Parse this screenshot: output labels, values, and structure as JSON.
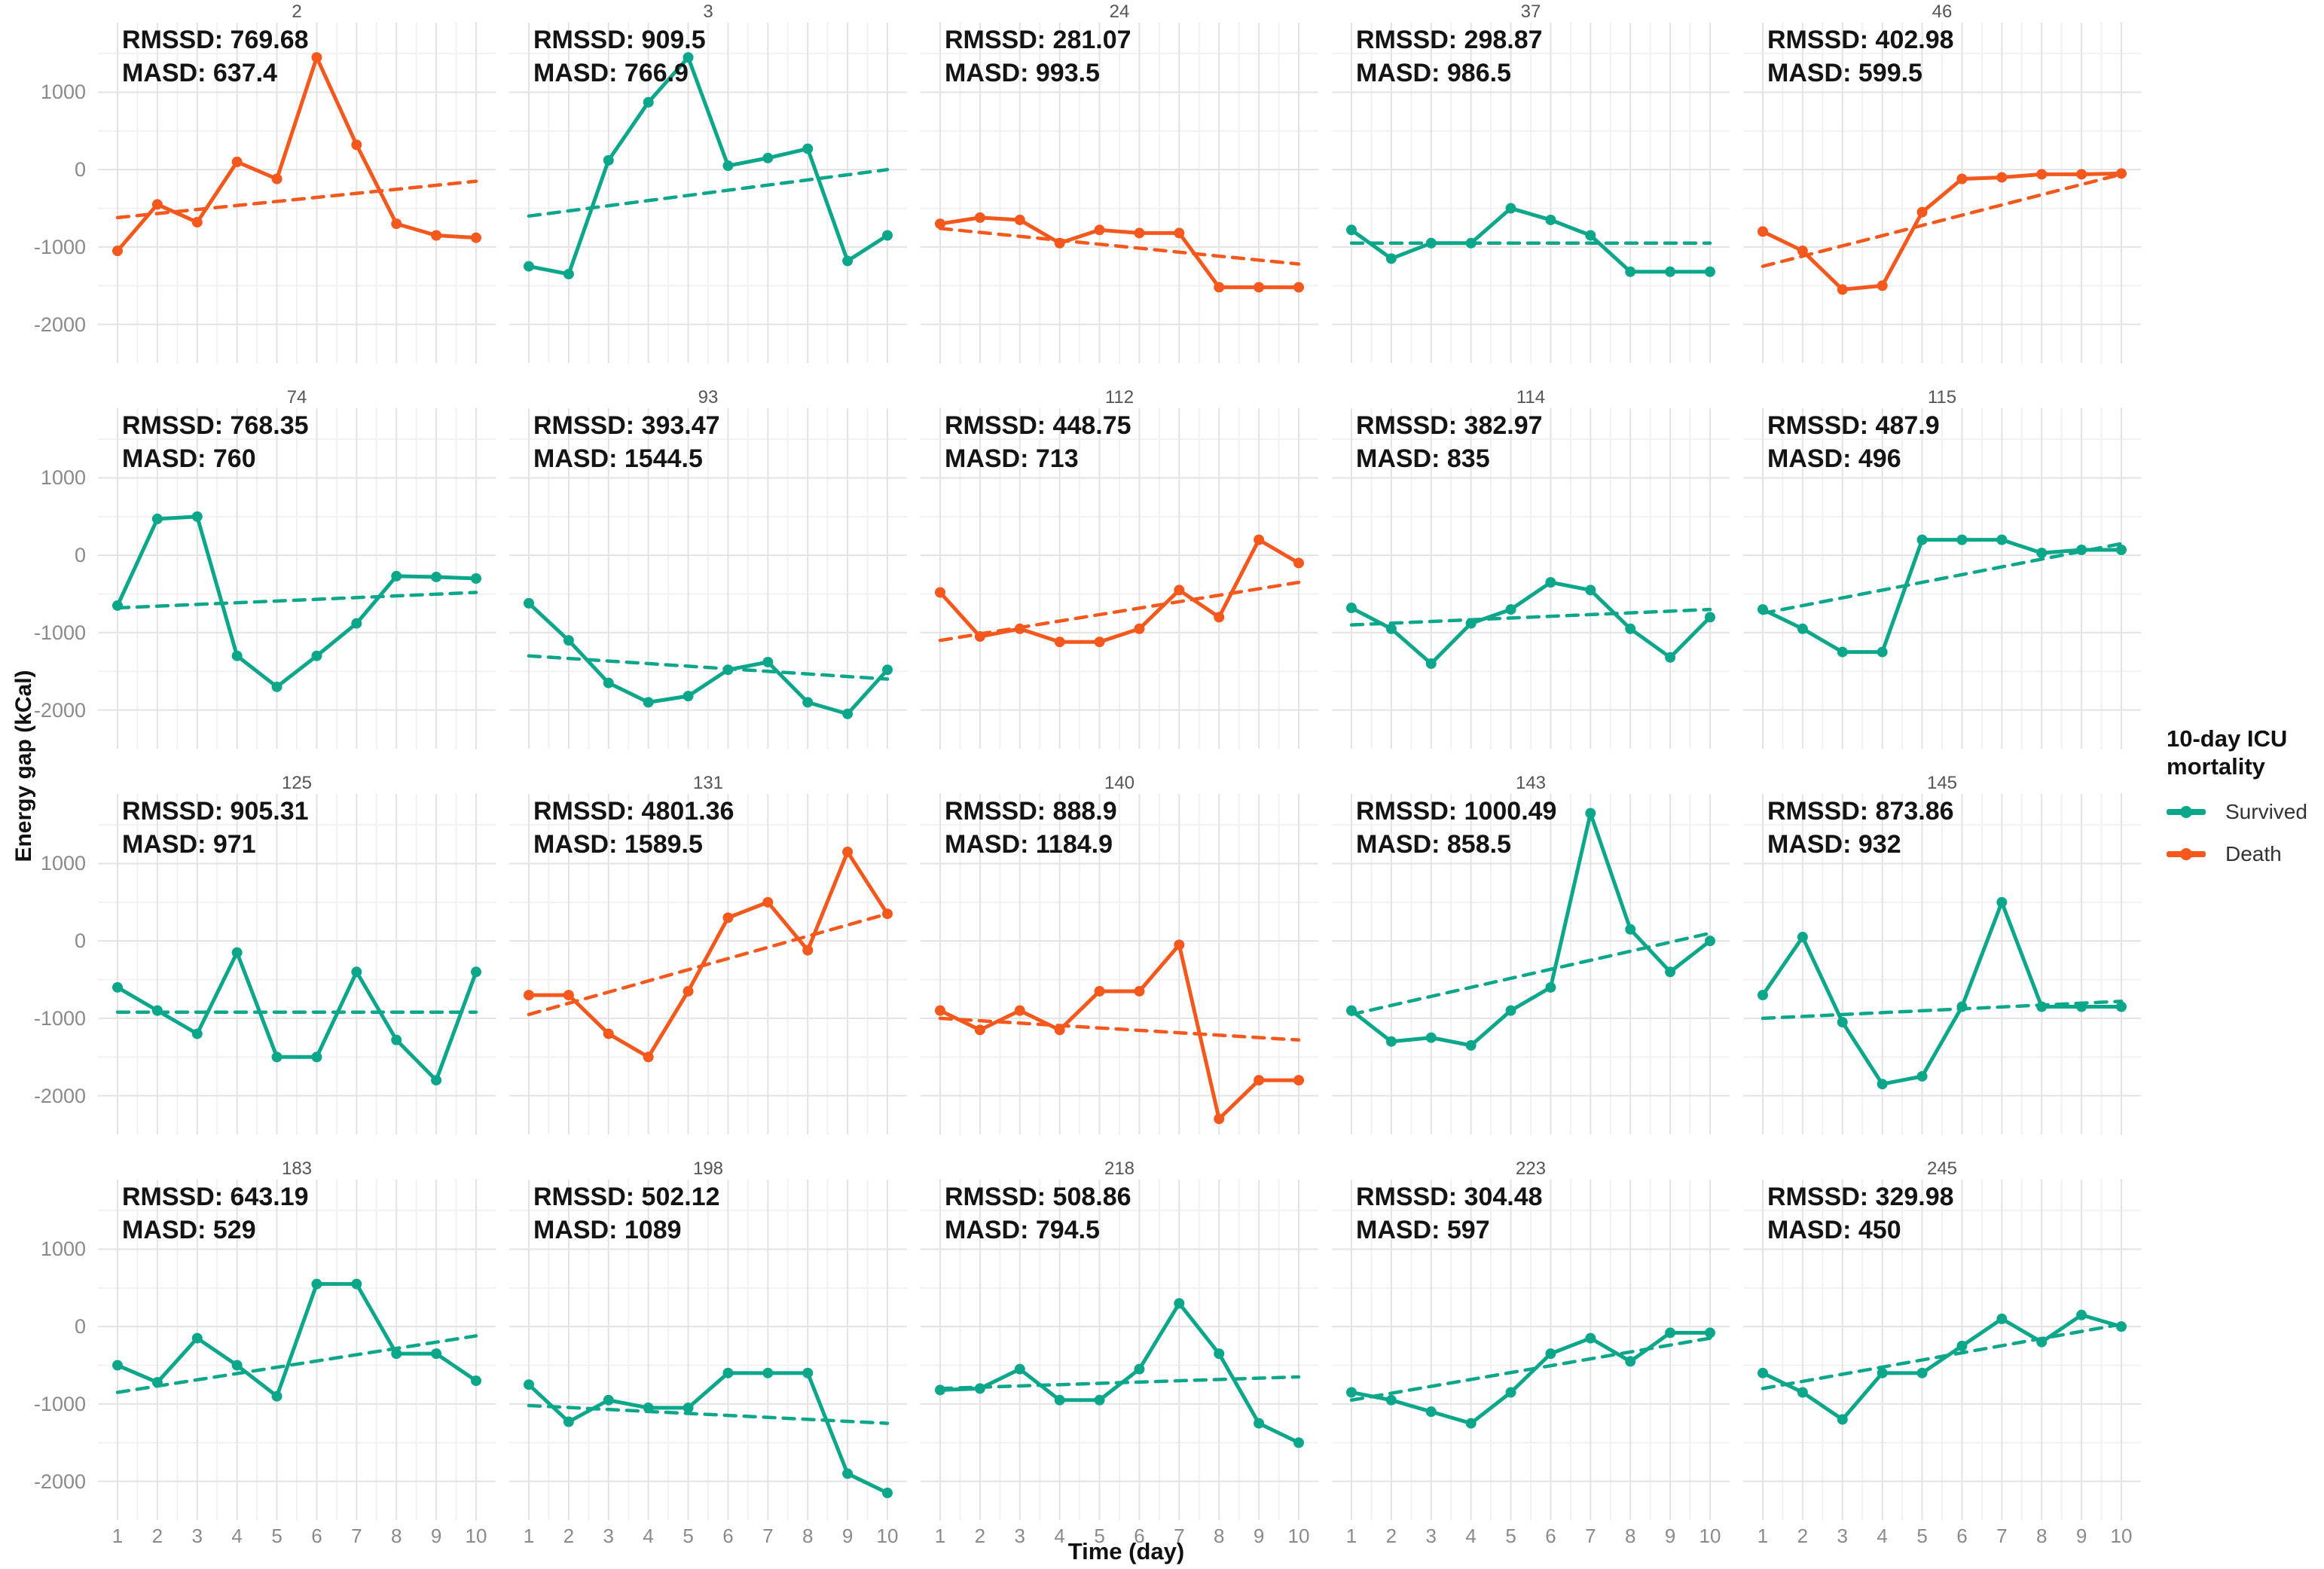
{
  "chart_data": {
    "type": "line",
    "title": "",
    "xlabel": "Time (day)",
    "ylabel": "Energy gap (kCal)",
    "x": [
      1,
      2,
      3,
      4,
      5,
      6,
      7,
      8,
      9,
      10
    ],
    "xticks": [
      "1",
      "2",
      "3",
      "4",
      "5",
      "6",
      "7",
      "8",
      "9",
      "10"
    ],
    "ylim": [
      -2500,
      1900
    ],
    "yticks": [
      1000,
      0,
      -1000,
      -2000
    ],
    "grid": {
      "major_color": "#e3e3e3",
      "minor_color": "#f1f1f1",
      "on": true
    },
    "annotation_labels": {
      "rmssd": "RMSSD:",
      "masd": "MASD:"
    },
    "legend": {
      "title_lines": [
        "10-day ICU",
        "mortality"
      ],
      "position": "right",
      "entries": [
        {
          "label": "Survived",
          "color": "#0CA78A"
        },
        {
          "label": "Death",
          "color": "#F4581C"
        }
      ]
    },
    "series_colors": {
      "Survived": "#0CA78A",
      "Death": "#F4581C"
    },
    "facets": [
      {
        "id": "2",
        "group": "Death",
        "rmssd": "769.68",
        "masd": "637.4",
        "values": [
          -1050,
          -450,
          -680,
          100,
          -120,
          1450,
          320,
          -700,
          -850,
          -880
        ],
        "trend": [
          -620,
          -150
        ]
      },
      {
        "id": "3",
        "group": "Survived",
        "rmssd": "909.5",
        "masd": "766.9",
        "values": [
          -1250,
          -1350,
          120,
          870,
          1450,
          50,
          150,
          270,
          -1180,
          -850
        ],
        "trend": [
          -600,
          0
        ]
      },
      {
        "id": "24",
        "group": "Death",
        "rmssd": "281.07",
        "masd": "993.5",
        "values": [
          -700,
          -620,
          -650,
          -950,
          -780,
          -820,
          -820,
          -1520,
          -1520,
          -1520
        ],
        "trend": [
          -760,
          -1220
        ]
      },
      {
        "id": "37",
        "group": "Survived",
        "rmssd": "298.87",
        "masd": "986.5",
        "values": [
          -780,
          -1150,
          -950,
          -950,
          -500,
          -650,
          -850,
          -1320,
          -1320,
          -1320
        ],
        "trend": [
          -950,
          -950
        ]
      },
      {
        "id": "46",
        "group": "Death",
        "rmssd": "402.98",
        "masd": "599.5",
        "values": [
          -800,
          -1050,
          -1550,
          -1500,
          -550,
          -120,
          -100,
          -60,
          -60,
          -50
        ],
        "trend": [
          -1250,
          -60
        ]
      },
      {
        "id": "74",
        "group": "Survived",
        "rmssd": "768.35",
        "masd": "760",
        "values": [
          -650,
          470,
          500,
          -1300,
          -1700,
          -1300,
          -880,
          -270,
          -280,
          -300
        ],
        "trend": [
          -680,
          -480
        ]
      },
      {
        "id": "93",
        "group": "Survived",
        "rmssd": "393.47",
        "masd": "1544.5",
        "values": [
          -620,
          -1100,
          -1650,
          -1900,
          -1820,
          -1480,
          -1380,
          -1900,
          -2050,
          -1480
        ],
        "trend": [
          -1300,
          -1600
        ]
      },
      {
        "id": "112",
        "group": "Death",
        "rmssd": "448.75",
        "masd": "713",
        "values": [
          -480,
          -1050,
          -950,
          -1120,
          -1120,
          -950,
          -450,
          -800,
          200,
          -100
        ],
        "trend": [
          -1100,
          -350
        ]
      },
      {
        "id": "114",
        "group": "Survived",
        "rmssd": "382.97",
        "masd": "835",
        "values": [
          -680,
          -950,
          -1400,
          -880,
          -700,
          -350,
          -450,
          -950,
          -1320,
          -800
        ],
        "trend": [
          -900,
          -700
        ]
      },
      {
        "id": "115",
        "group": "Survived",
        "rmssd": "487.9",
        "masd": "496",
        "values": [
          -700,
          -950,
          -1250,
          -1250,
          200,
          200,
          200,
          30,
          70,
          70
        ],
        "trend": [
          -750,
          150
        ]
      },
      {
        "id": "125",
        "group": "Survived",
        "rmssd": "905.31",
        "masd": "971",
        "values": [
          -600,
          -900,
          -1200,
          -150,
          -1500,
          -1500,
          -400,
          -1280,
          -1800,
          -400
        ],
        "trend": [
          -920,
          -920
        ]
      },
      {
        "id": "131",
        "group": "Death",
        "rmssd": "4801.36",
        "masd": "1589.5",
        "values": [
          -700,
          -700,
          -1200,
          -1500,
          -650,
          300,
          500,
          -120,
          1150,
          350
        ],
        "trend": [
          -950,
          350
        ]
      },
      {
        "id": "140",
        "group": "Death",
        "rmssd": "888.9",
        "masd": "1184.9",
        "values": [
          -900,
          -1150,
          -900,
          -1150,
          -650,
          -650,
          -50,
          -2300,
          -1800,
          -1800
        ],
        "trend": [
          -1000,
          -1280
        ]
      },
      {
        "id": "143",
        "group": "Survived",
        "rmssd": "1000.49",
        "masd": "858.5",
        "values": [
          -900,
          -1300,
          -1250,
          -1350,
          -900,
          -600,
          1650,
          150,
          -400,
          0
        ],
        "trend": [
          -950,
          100
        ]
      },
      {
        "id": "145",
        "group": "Survived",
        "rmssd": "873.86",
        "masd": "932",
        "values": [
          -700,
          50,
          -1050,
          -1850,
          -1750,
          -850,
          500,
          -850,
          -850,
          -850
        ],
        "trend": [
          -1000,
          -780
        ]
      },
      {
        "id": "183",
        "group": "Survived",
        "rmssd": "643.19",
        "masd": "529",
        "values": [
          -500,
          -720,
          -150,
          -500,
          -900,
          550,
          550,
          -350,
          -350,
          -700
        ],
        "trend": [
          -850,
          -120
        ]
      },
      {
        "id": "198",
        "group": "Survived",
        "rmssd": "502.12",
        "masd": "1089",
        "values": [
          -750,
          -1230,
          -950,
          -1050,
          -1050,
          -600,
          -600,
          -600,
          -1900,
          -2150
        ],
        "trend": [
          -1020,
          -1250
        ]
      },
      {
        "id": "218",
        "group": "Survived",
        "rmssd": "508.86",
        "masd": "794.5",
        "values": [
          -820,
          -800,
          -550,
          -950,
          -950,
          -550,
          300,
          -350,
          -1250,
          -1500
        ],
        "trend": [
          -800,
          -650
        ]
      },
      {
        "id": "223",
        "group": "Survived",
        "rmssd": "304.48",
        "masd": "597",
        "values": [
          -850,
          -950,
          -1100,
          -1250,
          -850,
          -350,
          -150,
          -450,
          -80,
          -80
        ],
        "trend": [
          -950,
          -150
        ]
      },
      {
        "id": "245",
        "group": "Survived",
        "rmssd": "329.98",
        "masd": "450",
        "values": [
          -600,
          -850,
          -1200,
          -600,
          -600,
          -250,
          100,
          -200,
          150,
          0
        ],
        "trend": [
          -800,
          30
        ]
      }
    ]
  }
}
